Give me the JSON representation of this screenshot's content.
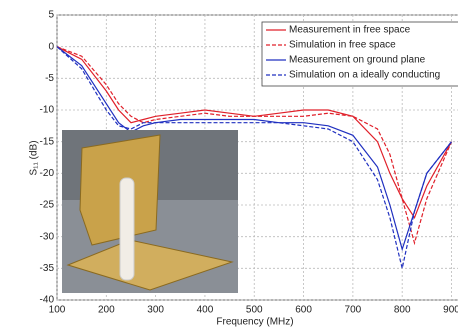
{
  "chart_data": {
    "type": "line",
    "x_label": "Frequency (MHz)",
    "y_label": "S₁₁ (dB)",
    "x": [
      100,
      150,
      200,
      225,
      250,
      275,
      300,
      350,
      400,
      450,
      500,
      550,
      600,
      650,
      700,
      750,
      775,
      800,
      825,
      850,
      900
    ],
    "series": [
      {
        "name": "Measurement in free space",
        "color": "#e0202a",
        "dash": false,
        "values": [
          0,
          -2,
          -7,
          -10,
          -12,
          -11.5,
          -11,
          -10.5,
          -10,
          -10.5,
          -11,
          -10.5,
          -10,
          -10,
          -11,
          -15,
          -20,
          -24,
          -27,
          -22,
          -15
        ]
      },
      {
        "name": "Simulation in free space",
        "color": "#e0202a",
        "dash": true,
        "values": [
          0,
          -1.5,
          -6,
          -9,
          -11,
          -12,
          -11.5,
          -11,
          -10.5,
          -11,
          -11,
          -11,
          -11,
          -10.5,
          -11,
          -13,
          -17,
          -24,
          -31,
          -24,
          -15
        ]
      },
      {
        "name": "Measurement on ground plane",
        "color": "#2030c0",
        "dash": false,
        "values": [
          0,
          -3,
          -9,
          -12,
          -13.5,
          -12.5,
          -12,
          -11.5,
          -11.5,
          -11.5,
          -11.5,
          -12,
          -12,
          -12.5,
          -14,
          -19,
          -25,
          -32,
          -26,
          -20,
          -15
        ]
      },
      {
        "name": "Simulation on a ideally conducting",
        "color": "#2030c0",
        "dash": true,
        "values": [
          0,
          -3.5,
          -10,
          -12.5,
          -13,
          -12,
          -12,
          -12,
          -12,
          -12,
          -12,
          -12,
          -12.5,
          -13,
          -15,
          -21,
          -27,
          -35,
          -26,
          -20,
          -15
        ]
      }
    ],
    "xlim": [
      100,
      900
    ],
    "xticks": [
      100,
      200,
      300,
      400,
      500,
      600,
      700,
      800,
      900
    ],
    "ylim": [
      -40,
      5
    ],
    "yticks": [
      5,
      0,
      -5,
      -10,
      -15,
      -20,
      -25,
      -30,
      -35,
      -40
    ],
    "grid": true,
    "legend": "upper right"
  }
}
